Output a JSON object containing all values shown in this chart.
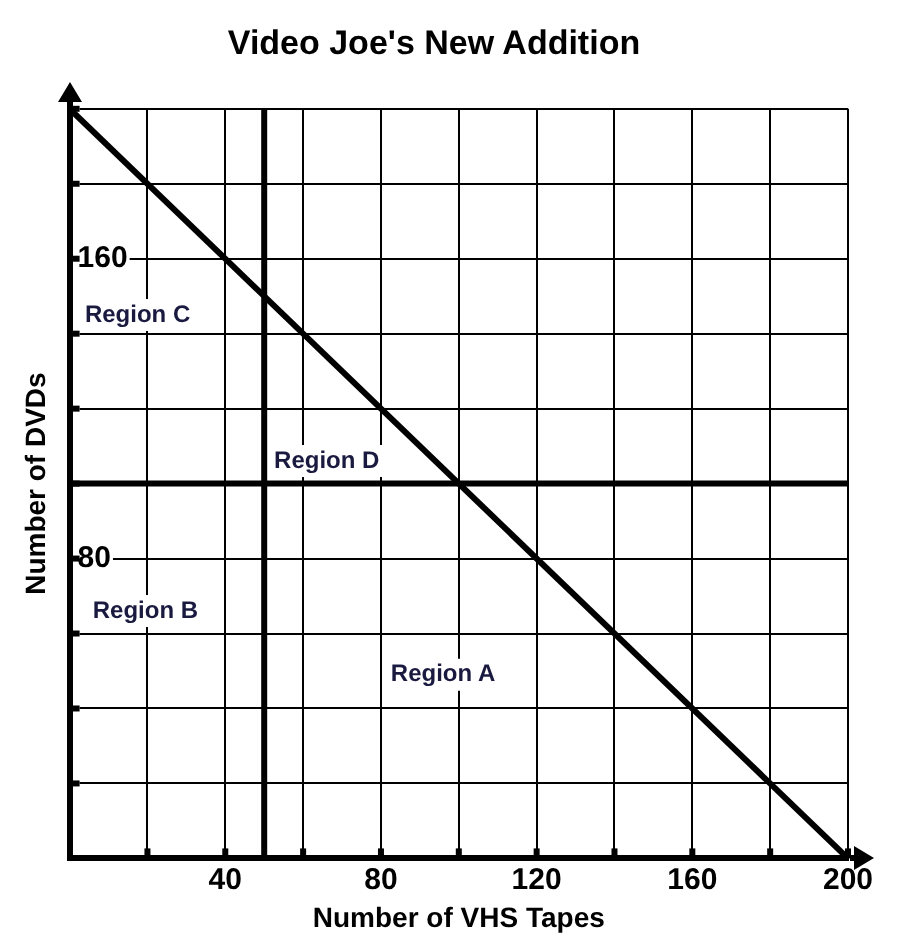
{
  "chart_data": {
    "type": "line",
    "title": "Video Joe's New Addition",
    "xlabel": "Number of VHS Tapes",
    "ylabel": "Number of DVDs",
    "series": [
      {
        "x": [
          0,
          200
        ],
        "values": [
          200,
          0
        ],
        "color": "#000000"
      }
    ],
    "xlim": [
      0,
      200
    ],
    "ylim": [
      0,
      200
    ],
    "xticks": [
      {
        "value": 20,
        "label": null
      },
      40,
      {
        "value": 60,
        "label": null
      },
      80,
      {
        "value": 100,
        "label": null
      },
      120,
      {
        "value": 140,
        "label": null
      },
      160,
      {
        "value": 180,
        "label": null
      },
      200
    ],
    "yticks": [
      {
        "value": 20,
        "label": null
      },
      {
        "value": 40,
        "label": null
      },
      {
        "value": 60,
        "label": null
      },
      80,
      {
        "value": 100,
        "label": null
      },
      {
        "value": 120,
        "label": null
      },
      {
        "value": 140,
        "label": null
      },
      160,
      {
        "value": 180,
        "label": null
      },
      {
        "value": 200,
        "label": null
      }
    ],
    "ref_lines": [
      {
        "axis": "x",
        "value": 50,
        "color": "#000000"
      },
      {
        "axis": "y",
        "value": 100,
        "color": "#000000"
      }
    ],
    "annotations": [
      "Region C",
      "Region D",
      "Region B",
      "Region A"
    ],
    "grid": true,
    "legend": false,
    "marker": "none",
    "line_style": "solid"
  }
}
